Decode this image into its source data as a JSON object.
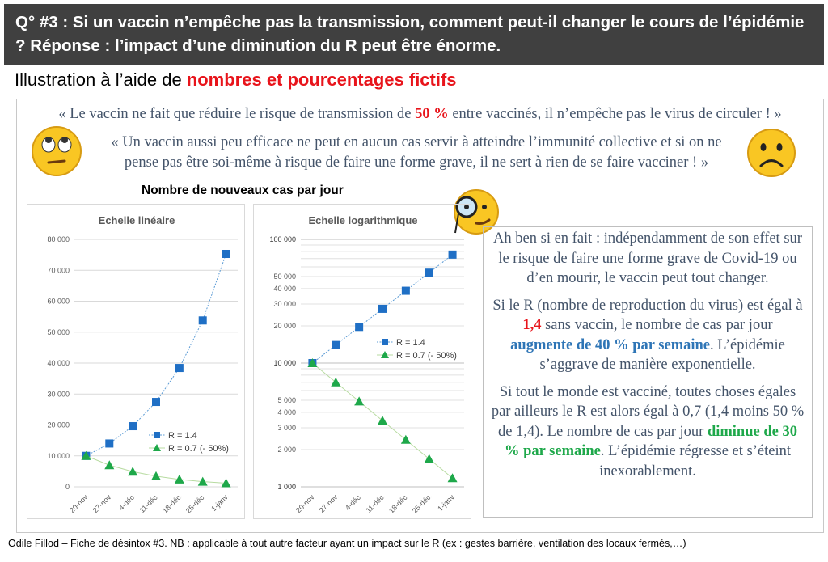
{
  "title": "Q° #3 : Si un vaccin n’empêche pas la transmission, comment peut-il changer le cours de l’épidémie ? Réponse : l’impact d’une diminution du R peut être énorme.",
  "subtitle": {
    "prefix": "Illustration à l’aide de ",
    "highlight": "nombres et pourcentages fictifs"
  },
  "quote1": {
    "before": "« Le vaccin ne fait que réduire le risque de transmission de ",
    "highlight": "50 %",
    "after": " entre vaccinés, il n’empêche pas le virus de circuler ! »"
  },
  "quote2": "« Un vaccin aussi peu efficace ne peut en aucun cas servir à atteindre l’immunité collective et si on ne pense pas être soi-même à risque de faire une forme grave, il ne sert à rien de se faire vacciner ! »",
  "charts_heading": "Nombre de nouveaux cas par jour",
  "answer": {
    "p1": "Ah ben si en fait : indépendamment de son effet sur le risque de faire une forme grave de Covid-19 ou d’en mourir, le vaccin peut tout changer.",
    "p2a": "Si le R (nombre de reproduction du virus) est égal à ",
    "p2r": "1,4",
    "p2b": " sans vaccin, le nombre de cas par jour ",
    "p2blue": "augmente de 40 % par semaine",
    "p2c": ". L’épidémie s’aggrave de manière exponentielle.",
    "p3a": "Si tout le monde est vacciné, toutes choses égales par ailleurs le R est alors égal à 0,7 (1,4 moins 50 % de 1,4). Le nombre de cas par jour ",
    "p3green": "diminue de 30 % par semaine",
    "p3b": ". L’épidémie régresse et s’éteint inexorablement."
  },
  "footer": "Odile Fillod – Fiche de désintox #3. NB : applicable à tout autre facteur ayant un impact sur le R (ex : gestes barrière, ventilation des locaux fermés,…)",
  "colors": {
    "series1": "#1f6fc5",
    "series2": "#1ea84a",
    "accent_red": "#e8141b",
    "title_bg": "#404040"
  },
  "chart_data": [
    {
      "type": "line",
      "title": "Echelle linéaire",
      "yscale": "linear",
      "ylim": [
        0,
        80000
      ],
      "yticks": [
        0,
        10000,
        20000,
        30000,
        40000,
        50000,
        60000,
        70000,
        80000
      ],
      "ytick_labels": [
        "0",
        "10 000",
        "20 000",
        "30 000",
        "40 000",
        "50 000",
        "60 000",
        "70 000",
        "80 000"
      ],
      "categories": [
        "20-nov.",
        "27-nov.",
        "4-déc.",
        "11-déc.",
        "18-déc.",
        "25-déc.",
        "1-janv."
      ],
      "series": [
        {
          "name": "R = 1.4",
          "values": [
            10000,
            14000,
            19600,
            27440,
            38416,
            53782,
            75295
          ]
        },
        {
          "name": "R = 0.7 (- 50%)",
          "values": [
            10000,
            7000,
            4900,
            3430,
            2401,
            1681,
            1176
          ]
        }
      ],
      "legend": "center-right"
    },
    {
      "type": "line",
      "title": "Echelle logarithmique",
      "yscale": "log",
      "ylim": [
        1000,
        100000
      ],
      "yticks": [
        1000,
        2000,
        3000,
        4000,
        5000,
        10000,
        20000,
        30000,
        40000,
        50000,
        100000
      ],
      "ytick_labels": [
        "1 000",
        "2 000",
        "3 000",
        "4 000",
        "5 000",
        "10 000",
        "20 000",
        "30 000",
        "40 000",
        "50 000",
        "100 000"
      ],
      "categories": [
        "20-nov.",
        "27-nov.",
        "4-déc.",
        "11-déc.",
        "18-déc.",
        "25-déc.",
        "1-janv."
      ],
      "series": [
        {
          "name": "R = 1.4",
          "values": [
            10000,
            14000,
            19600,
            27440,
            38416,
            53782,
            75295
          ]
        },
        {
          "name": "R = 0.7 (- 50%)",
          "values": [
            10000,
            7000,
            4900,
            3430,
            2401,
            1681,
            1176
          ]
        }
      ],
      "legend": "center-right"
    }
  ]
}
